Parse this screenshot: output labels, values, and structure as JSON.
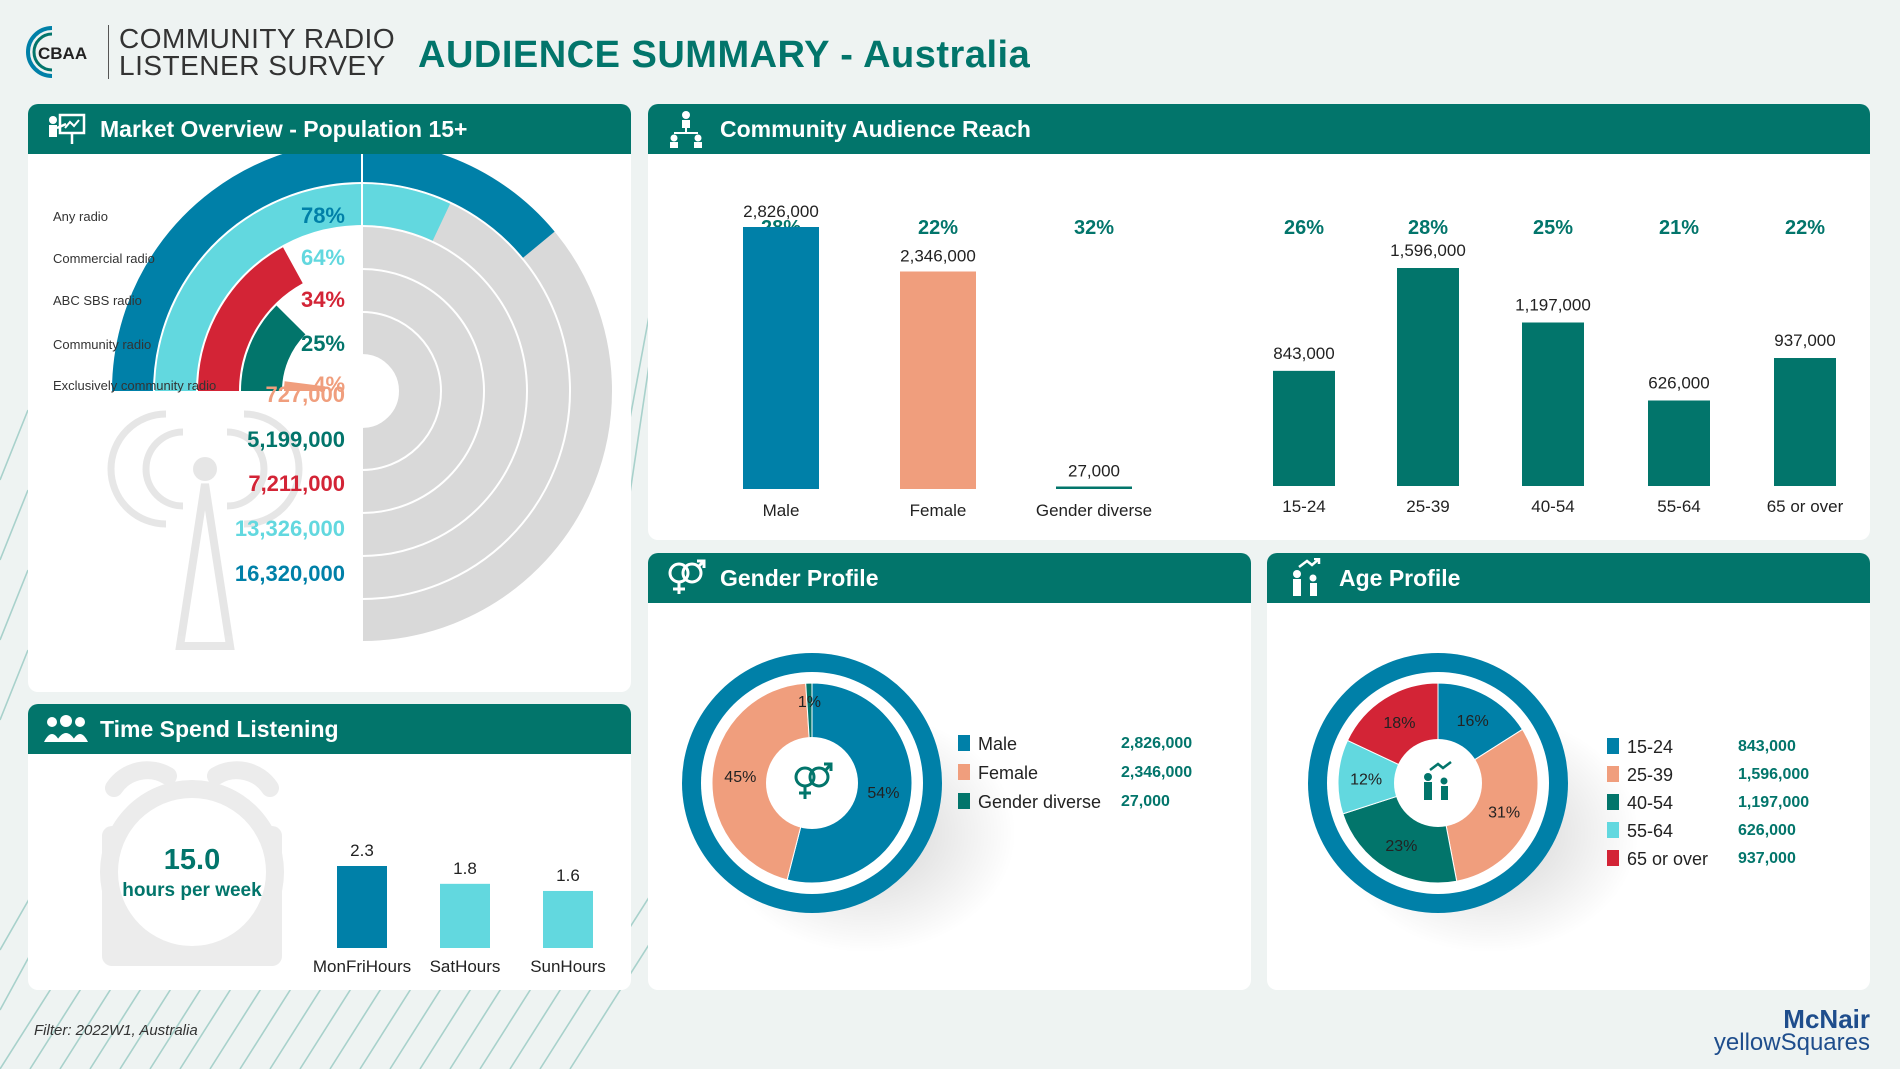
{
  "header": {
    "logo_abbr": "CBAA",
    "logo_line1": "COMMUNITY RADIO",
    "logo_line2": "LISTENER SURVEY",
    "title": "AUDIENCE SUMMARY - Australia"
  },
  "footer": {
    "filter": "Filter: 2022W1, Australia",
    "brand_line1": "McNair",
    "brand_line2": "yellowSquares"
  },
  "colors": {
    "teal": "#02756b",
    "blue": "#0080a8",
    "aqua": "#62d8df",
    "red": "#d32436",
    "salmon": "#f09e7d",
    "grey": "#d9d9d9"
  },
  "cards": {
    "market": "Market Overview - Population 15+",
    "reach": "Community Audience Reach",
    "gender": "Gender Profile",
    "age": "Age Profile",
    "time": "Time Spend Listening"
  },
  "chart_data": [
    {
      "id": "market-overview",
      "type": "radial-bar",
      "max": 100,
      "series": [
        {
          "label": "Any radio",
          "pct_label": "78%",
          "value": 78,
          "audience": "16,320,000",
          "color": "#0080a8"
        },
        {
          "label": "Commercial radio",
          "pct_label": "64%",
          "value": 64,
          "audience": "13,326,000",
          "color": "#62d8df"
        },
        {
          "label": "ABC SBS radio",
          "pct_label": "34%",
          "value": 34,
          "audience": "7,211,000",
          "color": "#d32436"
        },
        {
          "label": "Community radio",
          "pct_label": "25%",
          "value": 25,
          "audience": "5,199,000",
          "color": "#02756b"
        },
        {
          "label": "Exclusively community radio",
          "pct_label": "4%",
          "value": 4,
          "audience": "727,000",
          "color": "#f09e7d"
        }
      ]
    },
    {
      "id": "reach-gender",
      "type": "bar",
      "categories": [
        "Male",
        "Female",
        "Gender diverse"
      ],
      "values": [
        2826000,
        2346000,
        27000
      ],
      "value_labels": [
        "2,826,000",
        "2,346,000",
        "27,000"
      ],
      "pct_labels": [
        "28%",
        "22%",
        "32%"
      ],
      "colors": [
        "#0080a8",
        "#f09e7d",
        "#02756b"
      ],
      "ylim": [
        0,
        2826000
      ]
    },
    {
      "id": "reach-age",
      "type": "bar",
      "categories": [
        "15-24",
        "25-39",
        "40-54",
        "55-64",
        "65 or over"
      ],
      "values": [
        843000,
        1596000,
        1197000,
        626000,
        937000
      ],
      "value_labels": [
        "843,000",
        "1,596,000",
        "1,197,000",
        "626,000",
        "937,000"
      ],
      "pct_labels": [
        "26%",
        "28%",
        "25%",
        "21%",
        "22%"
      ],
      "color": "#02756b",
      "ylim": [
        0,
        1596000
      ]
    },
    {
      "id": "gender-profile",
      "type": "pie",
      "slices": [
        {
          "label": "Male",
          "value": 54,
          "value_label": "54%",
          "audience": "2,826,000",
          "color": "#0080a8"
        },
        {
          "label": "Female",
          "value": 45,
          "value_label": "45%",
          "audience": "2,346,000",
          "color": "#f09e7d"
        },
        {
          "label": "Gender diverse",
          "value": 1,
          "value_label": "1%",
          "audience": "27,000",
          "color": "#02756b"
        }
      ]
    },
    {
      "id": "age-profile",
      "type": "pie",
      "slices": [
        {
          "label": "15-24",
          "value": 16,
          "value_label": "16%",
          "audience": "843,000",
          "color": "#0080a8"
        },
        {
          "label": "25-39",
          "value": 31,
          "value_label": "31%",
          "audience": "1,596,000",
          "color": "#f09e7d"
        },
        {
          "label": "40-54",
          "value": 23,
          "value_label": "23%",
          "audience": "1,197,000",
          "color": "#02756b"
        },
        {
          "label": "55-64",
          "value": 12,
          "value_label": "12%",
          "audience": "626,000",
          "color": "#62d8df"
        },
        {
          "label": "65 or over",
          "value": 18,
          "value_label": "18%",
          "audience": "937,000",
          "color": "#d32436"
        }
      ]
    },
    {
      "id": "time-spent",
      "type": "bar",
      "headline_value": "15.0",
      "headline_unit": "hours per week",
      "categories": [
        "MonFriHours",
        "SatHours",
        "SunHours"
      ],
      "values": [
        2.3,
        1.8,
        1.6
      ],
      "value_labels": [
        "2.3",
        "1.8",
        "1.6"
      ],
      "colors": [
        "#0080a8",
        "#62d8df",
        "#62d8df"
      ],
      "ylim": [
        0,
        2.3
      ]
    }
  ]
}
